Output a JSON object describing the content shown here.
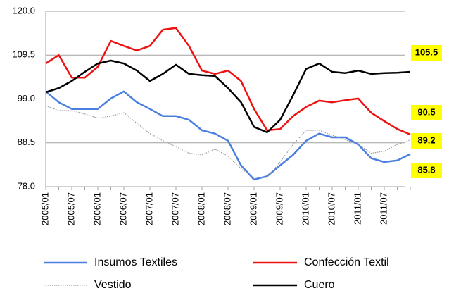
{
  "chart_data": {
    "type": "line",
    "categories": [
      "2005/01",
      null,
      "2005/07",
      null,
      "2006/01",
      null,
      "2006/07",
      null,
      "2007/01",
      null,
      "2007/07",
      null,
      "2008/01",
      null,
      "2008/07",
      null,
      "2009/01",
      null,
      "2009/07",
      null,
      "2010/01",
      null,
      "2010/07",
      null,
      "2011/01",
      null,
      "2011/07",
      null,
      null
    ],
    "series": [
      {
        "name": "Insumos Textiles",
        "color": "#4a7fe0",
        "values": [
          100.8,
          98.2,
          96.6,
          96.6,
          96.6,
          99.1,
          100.8,
          98.2,
          96.6,
          94.9,
          94.9,
          94.0,
          91.5,
          90.7,
          89.0,
          83.1,
          79.7,
          80.5,
          83.1,
          85.6,
          89.0,
          90.7,
          89.8,
          89.8,
          88.1,
          84.8,
          83.9,
          84.3,
          85.8
        ]
      },
      {
        "name": "Confección Textil",
        "color": "#ee1111",
        "values": [
          107.5,
          109.5,
          104.1,
          104.1,
          106.7,
          112.9,
          111.7,
          110.6,
          111.7,
          115.6,
          116.0,
          111.7,
          105.8,
          105.0,
          105.8,
          103.3,
          96.6,
          91.5,
          91.8,
          94.9,
          97.1,
          98.6,
          98.2,
          98.7,
          99.1,
          95.7,
          93.7,
          91.8,
          90.5
        ]
      },
      {
        "name": "Vestido",
        "color": "#9a9a9a",
        "dashed": true,
        "values": [
          97.4,
          96.2,
          96.2,
          95.4,
          94.4,
          94.9,
          95.7,
          93.2,
          90.7,
          89.0,
          87.6,
          86.0,
          85.6,
          87.0,
          85.3,
          82.3,
          80.2,
          80.2,
          83.9,
          88.1,
          91.5,
          91.5,
          90.3,
          89.3,
          88.1,
          86.0,
          86.5,
          88.1,
          89.2
        ]
      },
      {
        "name": "Cuero",
        "color": "#000000",
        "values": [
          100.6,
          101.6,
          103.3,
          105.5,
          107.5,
          108.2,
          107.5,
          105.8,
          103.3,
          105.0,
          107.2,
          105.0,
          104.7,
          104.5,
          101.6,
          98.2,
          92.3,
          91.0,
          94.0,
          99.9,
          106.2,
          107.5,
          105.5,
          105.2,
          105.8,
          105.0,
          105.2,
          105.3,
          105.5
        ]
      }
    ],
    "ylim": [
      78,
      120
    ],
    "yticks": [
      {
        "value": 78,
        "label": "78.0"
      },
      88.5,
      {
        "value": 99,
        "label": "99.0"
      },
      109.5,
      {
        "value": 120,
        "label": "120.0"
      }
    ],
    "grid": true,
    "legend": "bottom",
    "annotations": [
      "105.5",
      "90.5",
      "89.2",
      "85.8"
    ]
  }
}
